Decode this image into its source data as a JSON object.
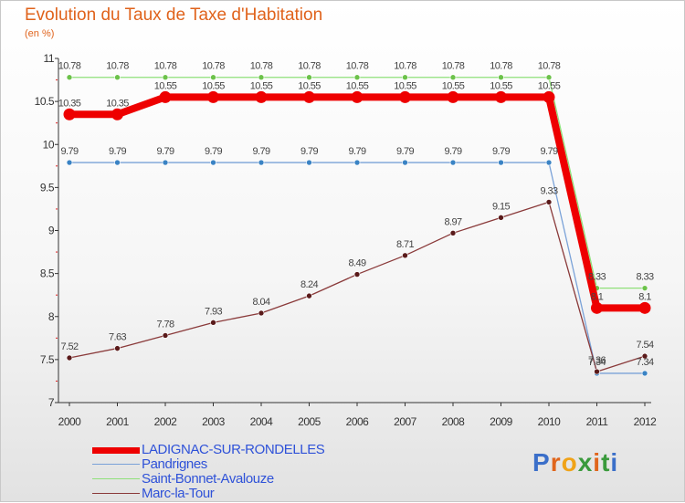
{
  "title": "Evolution du Taux de Taxe d'Habitation",
  "subtitle": "(en %)",
  "brand": {
    "text": "Proxiti",
    "letter_colors": [
      "#3b6fc9",
      "#e0651c",
      "#f0a318",
      "#3a9a3c",
      "#e0651c",
      "#3a9a3c",
      "#3b6fc9"
    ]
  },
  "chart_data": {
    "type": "line",
    "title": "Evolution du Taux de Taxe d'Habitation",
    "ylabel": "(en %)",
    "xlabel": "",
    "x": [
      "2000",
      "2001",
      "2002",
      "2003",
      "2004",
      "2005",
      "2006",
      "2007",
      "2008",
      "2009",
      "2010",
      "2011",
      "2012"
    ],
    "ylim": [
      7,
      11
    ],
    "y_ticks": [
      7,
      7.5,
      8,
      8.5,
      9,
      9.5,
      10,
      10.5,
      11
    ],
    "grid": false,
    "legend_position": "bottom-left",
    "series": [
      {
        "name": "LADIGNAC-SUR-RONDELLES",
        "color": "#ee0000",
        "marker_color": "#ee0000",
        "thick": true,
        "values": [
          10.35,
          10.35,
          10.55,
          10.55,
          10.55,
          10.55,
          10.55,
          10.55,
          10.55,
          10.55,
          10.55,
          8.1,
          8.1
        ],
        "labels": [
          "10.35",
          "10.35",
          "10.55",
          "10.55",
          "10.55",
          "10.55",
          "10.55",
          "10.55",
          "10.55",
          "10.55",
          "10.55",
          "8.1",
          "8.1"
        ]
      },
      {
        "name": "Pandrignes",
        "color": "#7aa2d8",
        "marker_color": "#3a83c4",
        "thick": false,
        "values": [
          9.79,
          9.79,
          9.79,
          9.79,
          9.79,
          9.79,
          9.79,
          9.79,
          9.79,
          9.79,
          9.79,
          7.34,
          7.34
        ],
        "labels": [
          "9.79",
          "9.79",
          "9.79",
          "9.79",
          "9.79",
          "9.79",
          "9.79",
          "9.79",
          "9.79",
          "9.79",
          "9.79",
          "7.34",
          "7.34"
        ]
      },
      {
        "name": "Saint-Bonnet-Avalouze",
        "color": "#8fe07a",
        "marker_color": "#6cc24a",
        "thick": false,
        "values": [
          10.78,
          10.78,
          10.78,
          10.78,
          10.78,
          10.78,
          10.78,
          10.78,
          10.78,
          10.78,
          10.78,
          8.33,
          8.33
        ],
        "labels": [
          "10.78",
          "10.78",
          "10.78",
          "10.78",
          "10.78",
          "10.78",
          "10.78",
          "10.78",
          "10.78",
          "10.78",
          "10.78",
          "8.33",
          "8.33"
        ]
      },
      {
        "name": "Marc-la-Tour",
        "color": "#8a3a3a",
        "marker_color": "#5a1a1a",
        "thick": false,
        "values": [
          7.52,
          7.63,
          7.78,
          7.93,
          8.04,
          8.24,
          8.49,
          8.71,
          8.97,
          9.15,
          9.33,
          7.36,
          7.54
        ],
        "labels": [
          "7.52",
          "7.63",
          "7.78",
          "7.93",
          "8.04",
          "8.24",
          "8.49",
          "8.71",
          "8.97",
          "9.15",
          "9.33",
          "7.36",
          "7.54"
        ]
      }
    ]
  }
}
